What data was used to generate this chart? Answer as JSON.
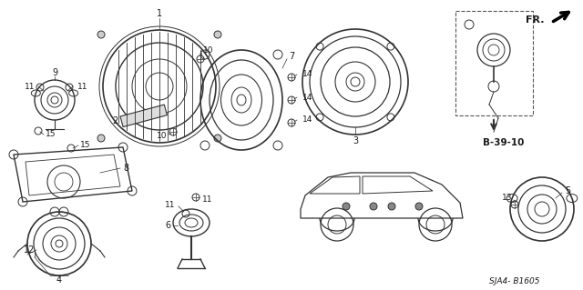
{
  "background_color": "#ffffff",
  "fig_width": 6.4,
  "fig_height": 3.19,
  "dpi": 100,
  "text_color": "#1a1a1a",
  "line_color": "#333333",
  "font_size": 6.5,
  "bottom_label": "SJA4- B1605",
  "ref_label": "B-39-10"
}
